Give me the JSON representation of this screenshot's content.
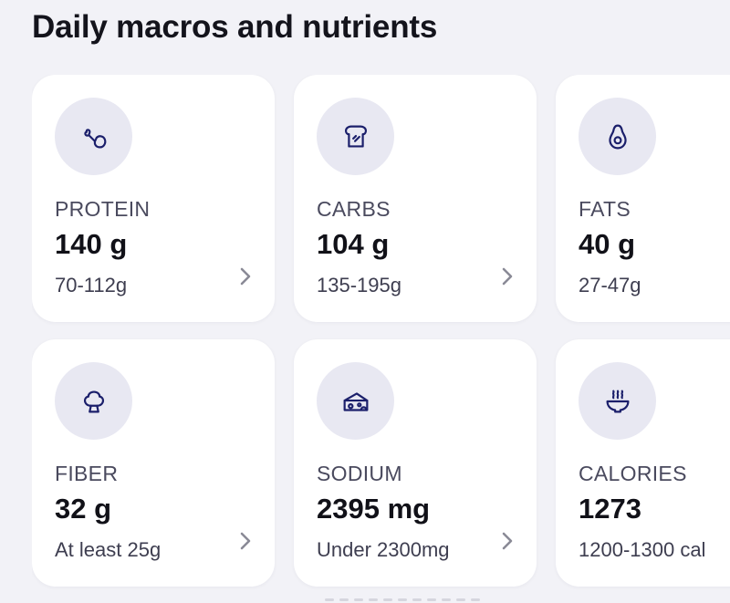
{
  "section": {
    "title": "Daily macros and nutrients"
  },
  "cards": [
    {
      "icon": "chicken-leg-icon",
      "label": "PROTEIN",
      "value": "140 g",
      "range": "70-112g"
    },
    {
      "icon": "bread-toast-icon",
      "label": "CARBS",
      "value": "104 g",
      "range": "135-195g"
    },
    {
      "icon": "avocado-icon",
      "label": "FATS",
      "value": "40 g",
      "range": "27-47g"
    },
    {
      "icon": "broccoli-icon",
      "label": "FIBER",
      "value": "32 g",
      "range": "At least 25g"
    },
    {
      "icon": "cheese-icon",
      "label": "SODIUM",
      "value": "2395 mg",
      "range": "Under 2300mg"
    },
    {
      "icon": "soup-bowl-icon",
      "label": "CALORIES",
      "value": "1273",
      "range": "1200-1300 cal"
    }
  ],
  "colors": {
    "icon_stroke": "#1b1f6b",
    "icon_bg": "#e8e8f2",
    "card_bg": "#ffffff",
    "page_bg": "#f2f2f7"
  }
}
